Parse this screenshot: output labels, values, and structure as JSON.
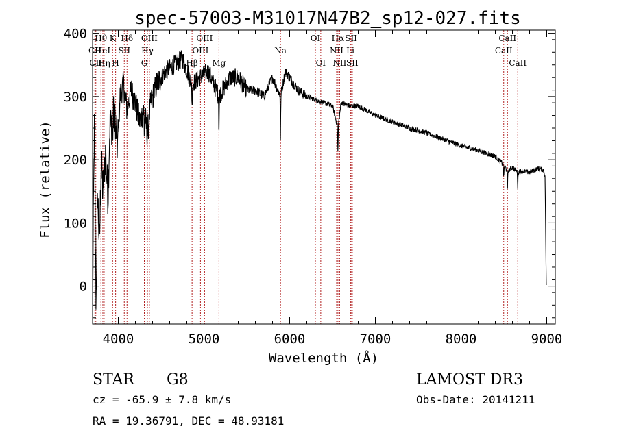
{
  "chart_data": {
    "type": "line",
    "title": "spec-57003-M31017N47B2_sp12-027.fits",
    "xlabel": "Wavelength (Å)",
    "ylabel": "Flux (relative)",
    "xlim": [
      3700,
      9100
    ],
    "ylim": [
      -60,
      405
    ],
    "x_ticks": [
      4000,
      5000,
      6000,
      7000,
      8000,
      9000
    ],
    "y_ticks": [
      0,
      100,
      200,
      300,
      400
    ],
    "spectrum_anchor_points": {
      "wavelength": [
        3700,
        3720,
        3740,
        3760,
        3780,
        3800,
        3820,
        3850,
        3880,
        3900,
        3930,
        3960,
        3990,
        4020,
        4060,
        4100,
        4150,
        4200,
        4250,
        4300,
        4340,
        4380,
        4450,
        4550,
        4650,
        4750,
        4861,
        4950,
        5050,
        5175,
        5300,
        5400,
        5500,
        5600,
        5700,
        5800,
        5893,
        5950,
        6000,
        6100,
        6200,
        6300,
        6400,
        6500,
        6563,
        6600,
        6700,
        6800,
        7000,
        7200,
        7400,
        7600,
        7800,
        8000,
        8200,
        8400,
        8498,
        8542,
        8600,
        8662,
        8700,
        8800,
        8900,
        8960,
        8980,
        8995
      ],
      "flux": [
        -40,
        260,
        -30,
        150,
        60,
        200,
        150,
        210,
        140,
        250,
        260,
        280,
        220,
        300,
        320,
        280,
        310,
        290,
        260,
        280,
        240,
        290,
        320,
        340,
        350,
        360,
        320,
        330,
        340,
        300,
        330,
        330,
        310,
        310,
        300,
        330,
        300,
        340,
        330,
        310,
        300,
        295,
        290,
        285,
        250,
        290,
        285,
        285,
        270,
        260,
        250,
        242,
        232,
        222,
        215,
        205,
        192,
        182,
        188,
        180,
        182,
        180,
        186,
        184,
        175,
        0
      ]
    },
    "spectral_lines": [
      {
        "name": "Hθ",
        "wavelength": 3798,
        "row": 1
      },
      {
        "name": "CII",
        "wavelength": 3727,
        "row": 2
      },
      {
        "name": "HeI",
        "wavelength": 3820,
        "row": 2
      },
      {
        "name": "CII",
        "wavelength": 3738,
        "row": 3
      },
      {
        "name": "Hη",
        "wavelength": 3835,
        "row": 3
      },
      {
        "name": "K",
        "wavelength": 3934,
        "row": 1
      },
      {
        "name": "H",
        "wavelength": 3969,
        "row": 3
      },
      {
        "name": "SII",
        "wavelength": 4070,
        "row": 2
      },
      {
        "name": "Hδ",
        "wavelength": 4102,
        "row": 1
      },
      {
        "name": "OIII",
        "wavelength": 4363,
        "row": 1
      },
      {
        "name": "Hγ",
        "wavelength": 4340,
        "row": 2
      },
      {
        "name": "G",
        "wavelength": 4304,
        "row": 3
      },
      {
        "name": "OIII",
        "wavelength": 5007,
        "row": 1
      },
      {
        "name": "OIII",
        "wavelength": 4959,
        "row": 2
      },
      {
        "name": "Hβ",
        "wavelength": 4861,
        "row": 3
      },
      {
        "name": "Mg",
        "wavelength": 5175,
        "row": 3
      },
      {
        "name": "Na",
        "wavelength": 5893,
        "row": 2
      },
      {
        "name": "OI",
        "wavelength": 6300,
        "row": 1
      },
      {
        "name": "OI",
        "wavelength": 6363,
        "row": 3
      },
      {
        "name": "Hα",
        "wavelength": 6563,
        "row": 1
      },
      {
        "name": "NII",
        "wavelength": 6548,
        "row": 2
      },
      {
        "name": "NII",
        "wavelength": 6583,
        "row": 3
      },
      {
        "name": "SII",
        "wavelength": 6717,
        "row": 1
      },
      {
        "name": "Li",
        "wavelength": 6708,
        "row": 2
      },
      {
        "name": "SII",
        "wavelength": 6731,
        "row": 3
      },
      {
        "name": "CaII",
        "wavelength": 8542,
        "row": 1
      },
      {
        "name": "CaII",
        "wavelength": 8498,
        "row": 2
      },
      {
        "name": "CaII",
        "wavelength": 8662,
        "row": 3
      }
    ],
    "colors": {
      "line_markers": "#b22222",
      "spectrum": "#000000"
    }
  },
  "info": {
    "object_class": "STAR",
    "subclass": "G8",
    "survey": "LAMOST DR3",
    "redshift_text": "cz = -65.9 ± 7.8 km/s",
    "obs_date_text": "Obs-Date: 20141211",
    "coords_text": "RA =  19.36791, DEC =  48.93181"
  }
}
